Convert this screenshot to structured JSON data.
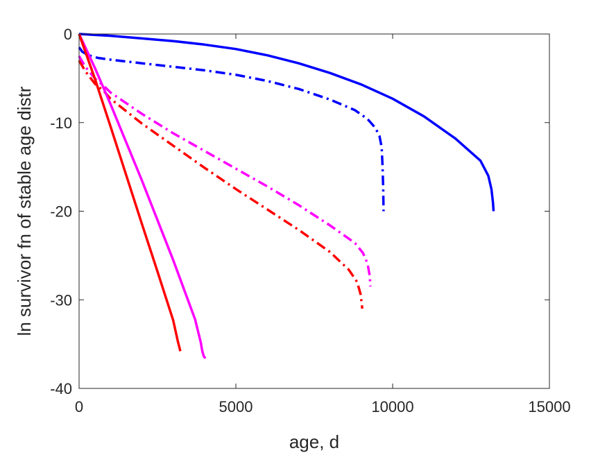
{
  "chart_data": {
    "type": "line",
    "xlabel": "age, d",
    "ylabel": "ln survivor fn of stable age distr",
    "xlim": [
      0,
      15000
    ],
    "ylim": [
      -40,
      0
    ],
    "xticks": [
      0,
      5000,
      10000,
      15000
    ],
    "yticks": [
      0,
      -10,
      -20,
      -30,
      -40
    ],
    "xtick_labels": [
      "0",
      "5000",
      "10000",
      "15000"
    ],
    "ytick_labels": [
      "0",
      "-10",
      "-20",
      "-30",
      "-40"
    ],
    "grid": false,
    "box": true,
    "series": [
      {
        "color": "#0000ff",
        "style": "solid",
        "points": [
          [
            0,
            0
          ],
          [
            1000,
            -0.2
          ],
          [
            2000,
            -0.5
          ],
          [
            3000,
            -0.8
          ],
          [
            4000,
            -1.2
          ],
          [
            5000,
            -1.7
          ],
          [
            6000,
            -2.4
          ],
          [
            7000,
            -3.3
          ],
          [
            8000,
            -4.4
          ],
          [
            9000,
            -5.7
          ],
          [
            10000,
            -7.3
          ],
          [
            11000,
            -9.3
          ],
          [
            12000,
            -11.8
          ],
          [
            12800,
            -14.3
          ],
          [
            13050,
            -16.0
          ],
          [
            13150,
            -17.5
          ],
          [
            13200,
            -19.0
          ],
          [
            13220,
            -20.0
          ]
        ]
      },
      {
        "color": "#0000ff",
        "style": "dashdot",
        "points": [
          [
            0,
            -1.5
          ],
          [
            100,
            -2.0
          ],
          [
            300,
            -2.4
          ],
          [
            600,
            -2.7
          ],
          [
            1000,
            -2.9
          ],
          [
            2000,
            -3.3
          ],
          [
            3000,
            -3.7
          ],
          [
            4000,
            -4.1
          ],
          [
            5000,
            -4.6
          ],
          [
            6000,
            -5.3
          ],
          [
            7000,
            -6.2
          ],
          [
            8000,
            -7.4
          ],
          [
            8800,
            -8.6
          ],
          [
            9200,
            -9.6
          ],
          [
            9450,
            -10.6
          ],
          [
            9580,
            -11.5
          ],
          [
            9650,
            -12.8
          ],
          [
            9680,
            -15.0
          ],
          [
            9700,
            -17.5
          ],
          [
            9710,
            -20.0
          ]
        ]
      },
      {
        "color": "#ff00ff",
        "style": "dashdot",
        "points": [
          [
            0,
            -2.5
          ],
          [
            200,
            -3.7
          ],
          [
            500,
            -5.0
          ],
          [
            800,
            -5.9
          ],
          [
            1000,
            -6.6
          ],
          [
            2000,
            -9.0
          ],
          [
            3000,
            -11.2
          ],
          [
            4000,
            -13.2
          ],
          [
            5000,
            -15.2
          ],
          [
            6000,
            -17.2
          ],
          [
            7000,
            -19.3
          ],
          [
            8000,
            -21.6
          ],
          [
            8800,
            -23.6
          ],
          [
            9050,
            -24.7
          ],
          [
            9200,
            -25.9
          ],
          [
            9270,
            -27.3
          ],
          [
            9290,
            -28.5
          ]
        ]
      },
      {
        "color": "#ff0000",
        "style": "dashdot",
        "points": [
          [
            0,
            -3.0
          ],
          [
            200,
            -4.2
          ],
          [
            500,
            -5.6
          ],
          [
            800,
            -6.5
          ],
          [
            1000,
            -7.3
          ],
          [
            2000,
            -10.1
          ],
          [
            3000,
            -12.6
          ],
          [
            4000,
            -15.1
          ],
          [
            5000,
            -17.5
          ],
          [
            6000,
            -19.8
          ],
          [
            7000,
            -22.1
          ],
          [
            8000,
            -24.6
          ],
          [
            8600,
            -26.6
          ],
          [
            8870,
            -28.0
          ],
          [
            8980,
            -29.4
          ],
          [
            9030,
            -31.0
          ]
        ]
      },
      {
        "color": "#ff00ff",
        "style": "solid",
        "points": [
          [
            0,
            0
          ],
          [
            500,
            -3.8
          ],
          [
            1000,
            -7.9
          ],
          [
            2000,
            -16.5
          ],
          [
            3000,
            -25.5
          ],
          [
            3700,
            -32.2
          ],
          [
            3880,
            -34.8
          ],
          [
            3930,
            -35.8
          ],
          [
            3980,
            -36.4
          ],
          [
            4030,
            -36.6
          ]
        ]
      },
      {
        "color": "#ff0000",
        "style": "solid",
        "points": [
          [
            0,
            0
          ],
          [
            500,
            -5.0
          ],
          [
            1000,
            -10.4
          ],
          [
            1500,
            -15.9
          ],
          [
            2000,
            -21.4
          ],
          [
            2500,
            -26.8
          ],
          [
            3000,
            -32.3
          ],
          [
            3150,
            -34.7
          ],
          [
            3230,
            -35.8
          ]
        ]
      }
    ]
  }
}
